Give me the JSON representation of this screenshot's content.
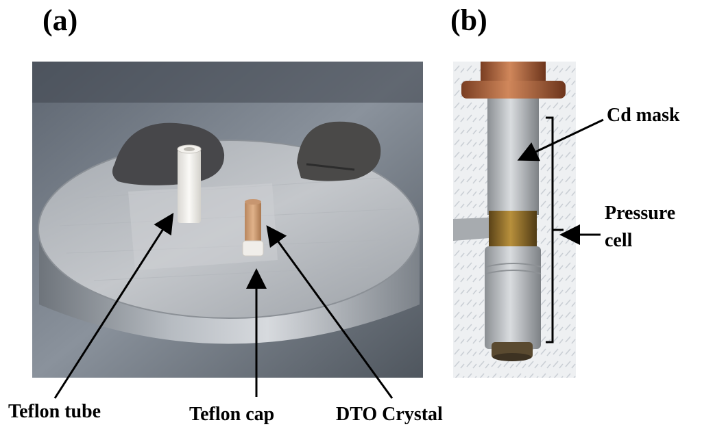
{
  "panels": {
    "a": {
      "label": "(a)"
    },
    "b": {
      "label": "(b)"
    }
  },
  "annotations": {
    "teflon_tube": "Teflon tube",
    "teflon_cap": "Teflon cap",
    "dto_crystal": "DTO Crystal",
    "cd_mask": "Cd mask",
    "pressure_cell_line1": "Pressure",
    "pressure_cell_line2": "cell"
  }
}
